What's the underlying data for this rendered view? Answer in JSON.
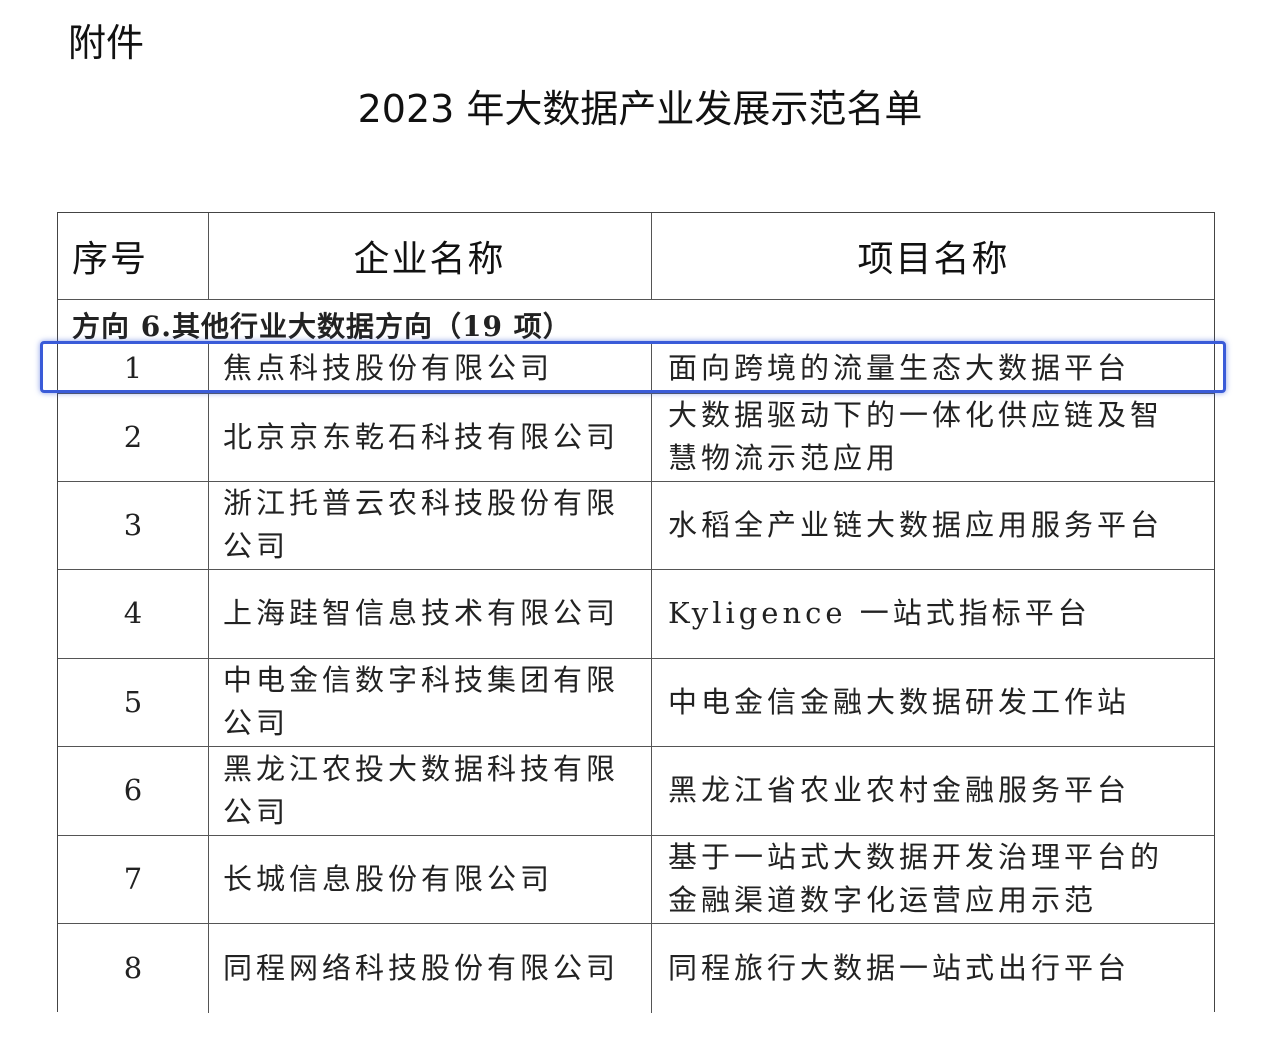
{
  "attachment_label": "附件",
  "title": "2023 年大数据产业发展示范名单",
  "table": {
    "headers": [
      "序号",
      "企业名称",
      "项目名称"
    ],
    "section": "方向 6.其他行业大数据方向（19 项）",
    "rows": [
      {
        "no": "1",
        "company": [
          "焦点科技股份有限公司"
        ],
        "project": [
          "面向跨境的流量生态大数据平台"
        ]
      },
      {
        "no": "2",
        "company": [
          "北京京东乾石科技有限公司"
        ],
        "project": [
          "大数据驱动下的一体化供应链及智",
          "慧物流示范应用"
        ]
      },
      {
        "no": "3",
        "company": [
          "浙江托普云农科技股份有限",
          "公司"
        ],
        "project": [
          "水稻全产业链大数据应用服务平台"
        ]
      },
      {
        "no": "4",
        "company": [
          "上海跬智信息技术有限公司"
        ],
        "project": [
          "Kyligence 一站式指标平台"
        ]
      },
      {
        "no": "5",
        "company": [
          "中电金信数字科技集团有限",
          "公司"
        ],
        "project": [
          "中电金信金融大数据研发工作站"
        ]
      },
      {
        "no": "6",
        "company": [
          "黑龙江农投大数据科技有限",
          "公司"
        ],
        "project": [
          "黑龙江省农业农村金融服务平台"
        ]
      },
      {
        "no": "7",
        "company": [
          "长城信息股份有限公司"
        ],
        "project": [
          "基于一站式大数据开发治理平台的",
          "金融渠道数字化运营应用示范"
        ]
      },
      {
        "no": "8",
        "company": [
          "同程网络科技股份有限公司"
        ],
        "project": [
          "同程旅行大数据一站式出行平台"
        ]
      }
    ]
  },
  "highlight_color": "#3a5bd8"
}
